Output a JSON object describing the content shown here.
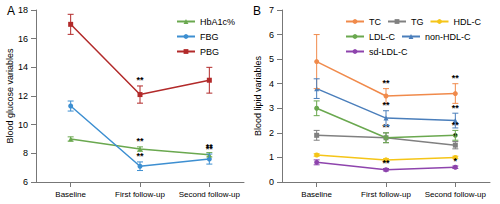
{
  "chart_data": [
    {
      "type": "line",
      "title": "A",
      "ylabel": "Blood glucose variables",
      "categories": [
        "Baseline",
        "First follow-up",
        "Second follow-up"
      ],
      "ylim": [
        6,
        18
      ],
      "yticks": [
        6,
        8,
        10,
        12,
        14,
        16,
        18
      ],
      "grid": false,
      "legend": "top right",
      "series": [
        {
          "name": "HbA1c%",
          "color": "#6aa84f",
          "marker": "triangle",
          "values": [
            9.0,
            8.3,
            7.9
          ],
          "errors": [
            0.15,
            0.15,
            0.15
          ],
          "annotations": [
            null,
            "**",
            "**"
          ]
        },
        {
          "name": "FBG",
          "color": "#3d8fd1",
          "marker": "circle",
          "values": [
            11.3,
            7.1,
            7.6
          ],
          "errors": [
            0.35,
            0.3,
            0.35
          ],
          "annotations": [
            null,
            "**",
            "**"
          ]
        },
        {
          "name": "PBG",
          "color": "#b22a2a",
          "marker": "square",
          "values": [
            17.0,
            12.1,
            13.1
          ],
          "errors": [
            0.7,
            0.6,
            0.9
          ],
          "annotations": [
            null,
            "**",
            null
          ]
        }
      ]
    },
    {
      "type": "line",
      "title": "B",
      "ylabel": "Blood lipid variables",
      "categories": [
        "Baseline",
        "First follow-up",
        "Second follow-up"
      ],
      "ylim": [
        0,
        7
      ],
      "yticks": [
        0,
        1,
        2,
        3,
        4,
        5,
        6,
        7
      ],
      "grid": false,
      "legend": "top right",
      "series": [
        {
          "name": "TC",
          "color": "#f08a4b",
          "marker": "circle",
          "values": [
            4.9,
            3.5,
            3.6
          ],
          "errors": [
            1.1,
            0.3,
            0.4
          ],
          "annotations": [
            null,
            "**",
            "**"
          ]
        },
        {
          "name": "TG",
          "color": "#808080",
          "marker": "square",
          "values": [
            1.9,
            1.8,
            1.5
          ],
          "errors": [
            0.2,
            0.2,
            0.15
          ],
          "annotations": [
            null,
            null,
            "*"
          ]
        },
        {
          "name": "HDL-C",
          "color": "#f5c518",
          "marker": "circle",
          "values": [
            1.1,
            0.9,
            1.0
          ],
          "errors": [
            0.05,
            0.05,
            0.05
          ],
          "annotations": [
            null,
            null,
            null
          ]
        },
        {
          "name": "LDL-C",
          "color": "#6aa84f",
          "marker": "circle",
          "values": [
            3.0,
            1.8,
            1.9
          ],
          "errors": [
            0.3,
            0.2,
            0.2
          ],
          "annotations": [
            null,
            "**",
            "**"
          ]
        },
        {
          "name": "non-HDL-C",
          "color": "#4a7ebb",
          "marker": "triangle",
          "values": [
            3.8,
            2.6,
            2.5
          ],
          "errors": [
            0.4,
            0.3,
            0.3
          ],
          "annotations": [
            null,
            "**",
            "**"
          ]
        },
        {
          "name": "sd-LDL-C",
          "color": "#8e44ad",
          "marker": "circle",
          "values": [
            0.8,
            0.5,
            0.6
          ],
          "errors": [
            0.1,
            0.05,
            0.05
          ],
          "annotations": [
            null,
            "**",
            "*"
          ]
        }
      ]
    }
  ]
}
